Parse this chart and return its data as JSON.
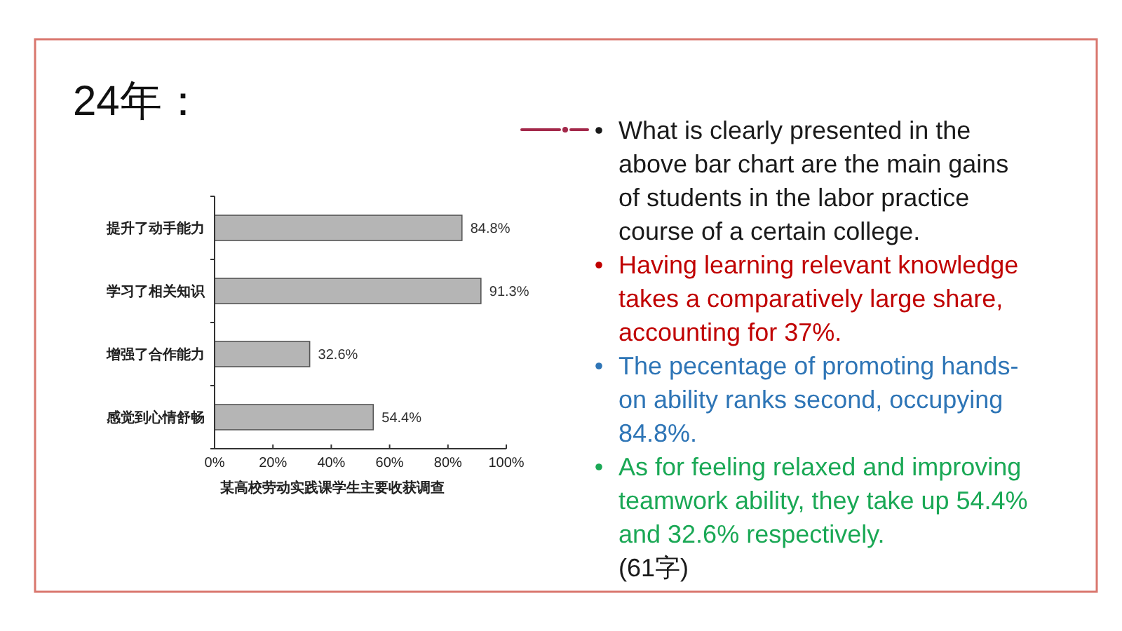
{
  "chart_data": {
    "type": "bar",
    "orientation": "horizontal",
    "title": "24年：",
    "xlabel": "某高校劳动实践课学生主要收获调查",
    "categories": [
      "提升了动手能力",
      "学习了相关知识",
      "增强了合作能力",
      "感觉到心情舒畅"
    ],
    "values": [
      84.8,
      91.3,
      32.6,
      54.4
    ],
    "color": "#b5b5b5",
    "value_labels": [
      "84.8%",
      "91.3%",
      "32.6%",
      "54.4%"
    ],
    "xlim": [
      0,
      100
    ],
    "xticks": [
      {
        "value": 0,
        "label": "0%"
      },
      {
        "value": 20,
        "label": "20%"
      },
      {
        "value": 40,
        "label": "40%"
      },
      {
        "value": 60,
        "label": "60%"
      },
      {
        "value": 80,
        "label": "80%"
      },
      {
        "value": 100,
        "label": "100%"
      }
    ],
    "annotations": [
      "What is clearly presented in the above bar chart are the main gains of students in the labor practice course of a certain college.",
      "Having learning relevant knowledge takes a comparatively large share, accounting for 37%.",
      "The pecentage of promoting hands-on ability ranks second, occupying 84.8%.",
      "As for feeling relaxed and improving teamwork ability, they take up 54.4% and 32.6% respectively.",
      "(61字)"
    ]
  }
}
